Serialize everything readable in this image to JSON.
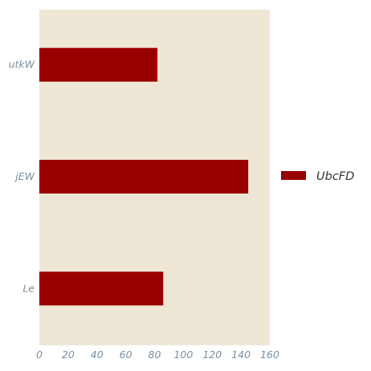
{
  "chart_data": {
    "type": "bar",
    "orientation": "horizontal",
    "categories": [
      "utkW",
      "jEW",
      "Le"
    ],
    "series": [
      {
        "name": "UbcFD",
        "values": [
          82,
          145,
          86
        ]
      }
    ],
    "xlim": [
      0,
      160
    ],
    "x_ticks": [
      "0",
      "20",
      "40",
      "60",
      "80",
      "100",
      "120",
      "140",
      "160"
    ],
    "grid": false,
    "legend_position": "right",
    "colors": {
      "plot_background": "#efe7d6",
      "bar": "#990000",
      "tick_text": "#7a8fa0",
      "legend_text": "#333333"
    }
  }
}
